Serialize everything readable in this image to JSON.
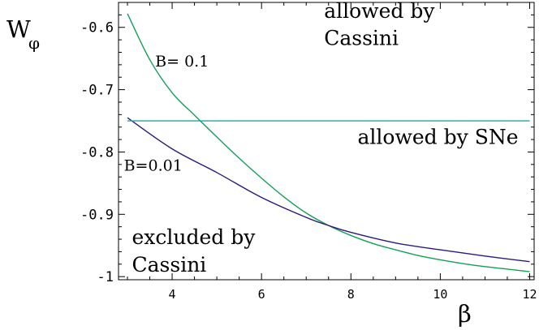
{
  "chart_data": {
    "type": "line",
    "xlabel": "β",
    "ylabel": "W",
    "ylabel_subscript": "φ",
    "xlim": [
      2.8,
      12.1
    ],
    "ylim": [
      -1.005,
      -0.56
    ],
    "x_ticks": [
      4,
      6,
      8,
      10,
      12
    ],
    "y_ticks": [
      -0.6,
      -0.7,
      -0.8,
      -0.9,
      -1
    ],
    "x_tick_labels": [
      "4",
      "6",
      "8",
      "10",
      "12"
    ],
    "y_tick_labels": [
      "-0.6",
      "-0.7",
      "-0.8",
      "-0.9",
      "-1"
    ],
    "grid": false,
    "series": [
      {
        "name": "B= 0.1",
        "color": "#13a05a",
        "x": [
          3,
          3.5,
          4,
          4.5,
          5,
          5.5,
          6,
          6.5,
          7,
          7.5,
          8,
          8.5,
          9,
          9.5,
          10,
          10.5,
          11,
          11.5,
          12
        ],
        "y": [
          -0.578,
          -0.652,
          -0.705,
          -0.741,
          -0.776,
          -0.81,
          -0.842,
          -0.872,
          -0.898,
          -0.918,
          -0.934,
          -0.947,
          -0.957,
          -0.966,
          -0.973,
          -0.979,
          -0.984,
          -0.988,
          -0.992
        ]
      },
      {
        "name": "B=0.01",
        "color": "#2e1a78",
        "x": [
          3,
          4,
          5,
          6,
          7,
          7.5,
          8,
          9,
          10,
          11,
          12
        ],
        "y": [
          -0.745,
          -0.795,
          -0.833,
          -0.873,
          -0.905,
          -0.918,
          -0.929,
          -0.946,
          -0.957,
          -0.967,
          -0.976
        ]
      },
      {
        "name": "allowed by SNe",
        "color": "#1aa6a6",
        "x": [
          3,
          12
        ],
        "y": [
          -0.75,
          -0.75
        ]
      }
    ],
    "annotations": [
      {
        "text": "allowed by",
        "x": 7.4,
        "y": -0.585
      },
      {
        "text": "Cassini",
        "x": 7.4,
        "y": -0.628
      },
      {
        "text": "B= 0.1",
        "x": 3.62,
        "y": -0.663
      },
      {
        "text": "allowed by SNe",
        "x": 8.15,
        "y": -0.787
      },
      {
        "text": "B=0.01",
        "x": 2.92,
        "y": -0.83
      },
      {
        "text": "excluded by",
        "x": 3.1,
        "y": -0.948
      },
      {
        "text": "Cassini",
        "x": 3.1,
        "y": -0.992
      }
    ]
  }
}
